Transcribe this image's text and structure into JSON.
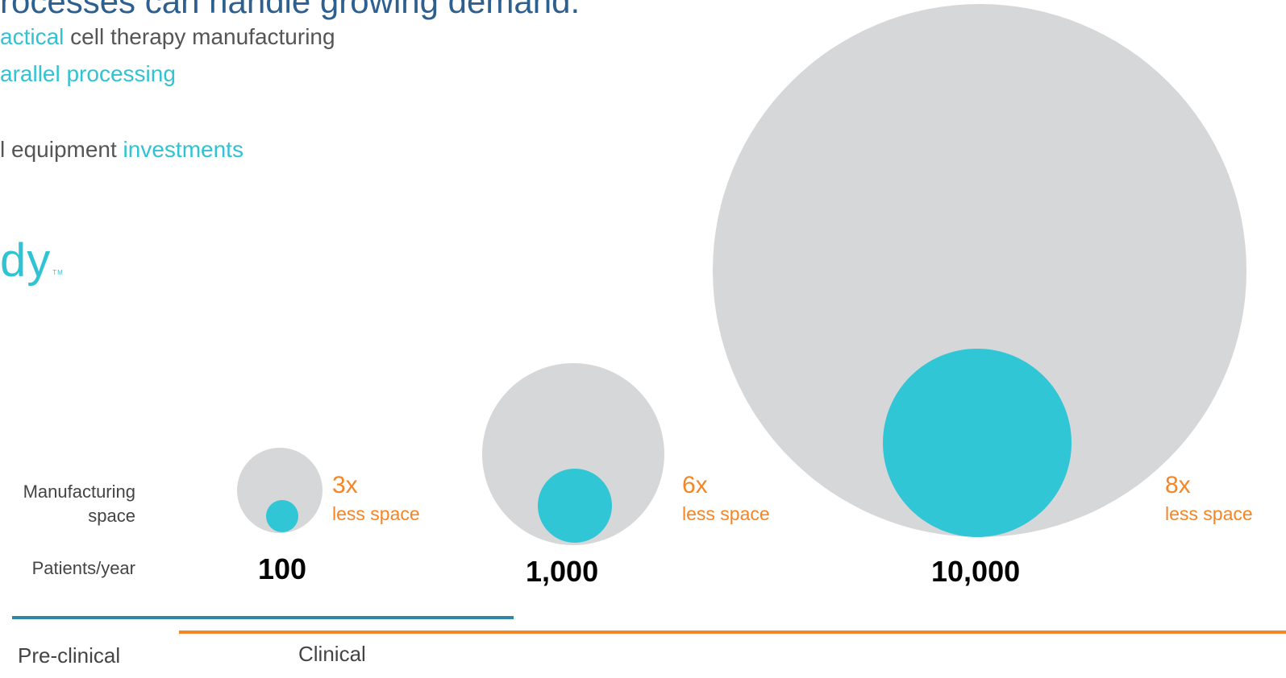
{
  "heading": "rocesses can handle growing demand.",
  "bullets": [
    {
      "parts": [
        {
          "text": "actical",
          "accent": true
        },
        {
          "text": " cell therapy manufacturing",
          "accent": false
        }
      ]
    },
    {
      "parts": [
        {
          "text": "arallel processing",
          "accent": true
        }
      ]
    },
    {
      "parts": [
        {
          "text": "l equipment ",
          "accent": false
        },
        {
          "text": "investments",
          "accent": true
        }
      ]
    }
  ],
  "logo": {
    "text": "dy",
    "tm": "TM"
  },
  "row_labels": {
    "space_line1": "Manufacturing",
    "space_line2": "space",
    "patients": "Patients/year"
  },
  "scenarios": [
    {
      "patients": "100",
      "multiplier": "3x",
      "caption": "less space"
    },
    {
      "patients": "1,000",
      "multiplier": "6x",
      "caption": "less space"
    },
    {
      "patients": "10,000",
      "multiplier": "8x",
      "caption": "less space"
    }
  ],
  "phases": {
    "preclinical": "Pre-clinical",
    "clinical": "Clinical"
  },
  "colors": {
    "accent": "#2fc3d3",
    "orange": "#f58525",
    "navy": "#2d5f8f",
    "gray": "#d6d7d9",
    "preclinical_line": "#2f87a3",
    "clinical_line": "#f58525"
  }
}
